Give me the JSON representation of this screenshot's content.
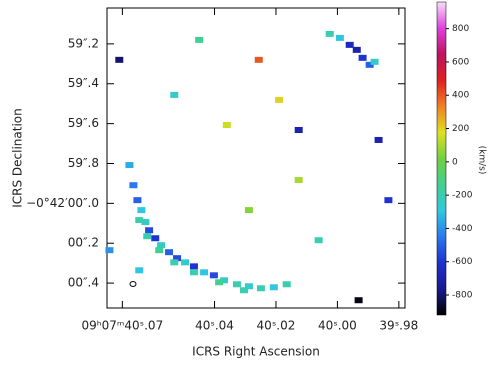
{
  "chart_data": {
    "type": "scatter",
    "x_label": "ICRS Right Ascension",
    "y_label": "ICRS Declination",
    "colorbar_label": "(km/s)",
    "xlim": [
      40.075,
      39.978
    ],
    "xticks": [
      {
        "value": 40.07,
        "label": "09ʰ07ᵐ40ˢ.07"
      },
      {
        "value": 40.04,
        "label": "40ˢ.04"
      },
      {
        "value": 40.02,
        "label": "40ˢ.02"
      },
      {
        "value": 40.0,
        "label": "40ˢ.00"
      },
      {
        "value": 39.98,
        "label": "39ˢ.98"
      }
    ],
    "ylim": [
      -0.525,
      0.98
    ],
    "yticks": [
      {
        "value": 0.8,
        "label": "59″.2"
      },
      {
        "value": 0.6,
        "label": "59″.4"
      },
      {
        "value": 0.4,
        "label": "59″.6"
      },
      {
        "value": 0.2,
        "label": "59″.8"
      },
      {
        "value": 0,
        "label": "−0°42′00″.0"
      },
      {
        "value": -0.2,
        "label": "00″.2"
      },
      {
        "value": -0.4,
        "label": "00″.4"
      }
    ],
    "clim": [
      -920,
      960
    ],
    "cticks": [
      800,
      600,
      400,
      200,
      0,
      -200,
      -400,
      -600,
      -800
    ],
    "colormap": [
      "#000000",
      "#1a1a90",
      "#2030d0",
      "#2878f0",
      "#30c8e0",
      "#40d090",
      "#70d040",
      "#e0e020",
      "#f08020",
      "#e02020",
      "#c01060",
      "#e040e0",
      "#f8e0f8"
    ],
    "x": [
      40.0677,
      40.0664,
      40.0651,
      40.0638,
      40.0625,
      40.0613,
      40.0593,
      40.0574,
      40.0548,
      40.0522,
      40.0496,
      40.0467,
      40.0434,
      40.0402,
      40.0369,
      40.0327,
      40.0288,
      40.0249,
      40.0207,
      40.0165,
      40.0645,
      40.0619,
      40.058,
      40.0531,
      40.0467,
      40.0385,
      40.0304,
      39.9992,
      39.996,
      39.9937,
      39.9918,
      39.9895,
      39.9879,
      40.0025,
      40.071,
      40.045,
      40.019,
      40.0126,
      40.0531,
      39.9834,
      40.0288,
      40.0061,
      40.0742,
      39.9931,
      40.036,
      40.0645,
      40.0126,
      39.9866,
      40.0256
    ],
    "y": [
      0.192,
      0.091,
      0.016,
      -0.034,
      -0.094,
      -0.135,
      -0.175,
      -0.21,
      -0.245,
      -0.275,
      -0.296,
      -0.316,
      -0.346,
      -0.361,
      -0.386,
      -0.406,
      -0.416,
      -0.426,
      -0.421,
      -0.406,
      -0.084,
      -0.165,
      -0.235,
      -0.296,
      -0.346,
      -0.396,
      -0.436,
      0.83,
      0.795,
      0.77,
      0.73,
      0.695,
      0.71,
      0.85,
      0.72,
      0.82,
      0.519,
      0.368,
      0.544,
      0.016,
      -0.034,
      -0.185,
      -0.235,
      -0.486,
      0.393,
      -0.336,
      0.117,
      0.318,
      0.72
    ],
    "values": [
      -350,
      -450,
      -500,
      -300,
      -250,
      -550,
      -600,
      -250,
      -500,
      -550,
      -250,
      -600,
      -300,
      -550,
      -250,
      -200,
      -250,
      -200,
      -300,
      -200,
      -200,
      -200,
      -150,
      -200,
      -200,
      -150,
      -200,
      -300,
      -650,
      -700,
      -600,
      -500,
      -250,
      -200,
      -800,
      -150,
      200,
      -700,
      -250,
      -600,
      50,
      -200,
      -400,
      -900,
      150,
      -300,
      100,
      -700,
      400
    ]
  }
}
